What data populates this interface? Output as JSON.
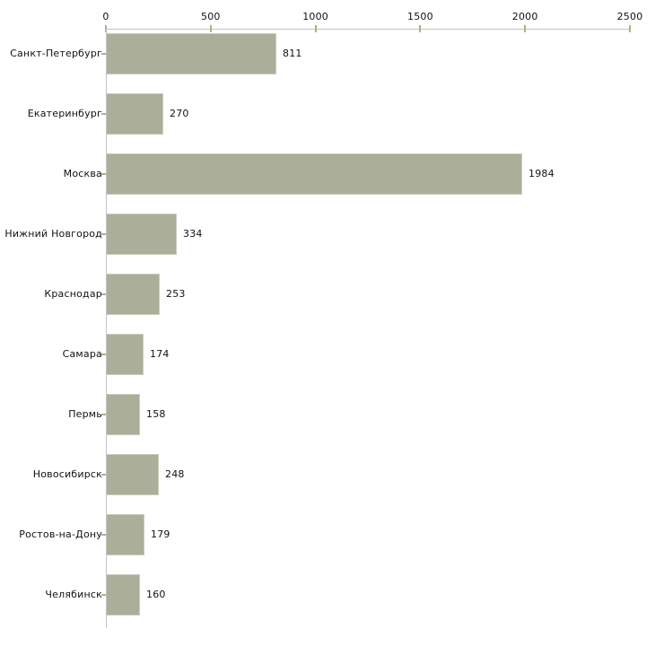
{
  "chart_data": {
    "type": "bar",
    "orientation": "horizontal",
    "title": "",
    "xlabel": "",
    "ylabel": "",
    "categories": [
      "Санкт-Петербург",
      "Екатеринбург",
      "Москва",
      "Нижний Новгород",
      "Краснодар",
      "Самара",
      "Пермь",
      "Новосибирск",
      "Ростов-на-Дону",
      "Челябинск"
    ],
    "values": [
      811,
      270,
      1984,
      334,
      253,
      174,
      158,
      248,
      179,
      160
    ],
    "data_labels": [
      "811",
      "270",
      "1984",
      "334",
      "253",
      "174",
      "158",
      "248",
      "179",
      "160"
    ],
    "x_axis": {
      "position": "top",
      "min": 0,
      "max": 2500,
      "ticks": [
        0,
        500,
        1000,
        1500,
        2000,
        2500
      ],
      "tick_labels": [
        "0",
        "500",
        "1000",
        "1500",
        "2000",
        "2500"
      ]
    },
    "grid": false,
    "legend": null,
    "colors": {
      "bar_fill": "#abaf99",
      "bar_edge": "#c9ccbd",
      "axis_line": "#c3c3c3",
      "tick_mark": "#aeb083",
      "text": "#111111",
      "background": "#ffffff"
    }
  }
}
